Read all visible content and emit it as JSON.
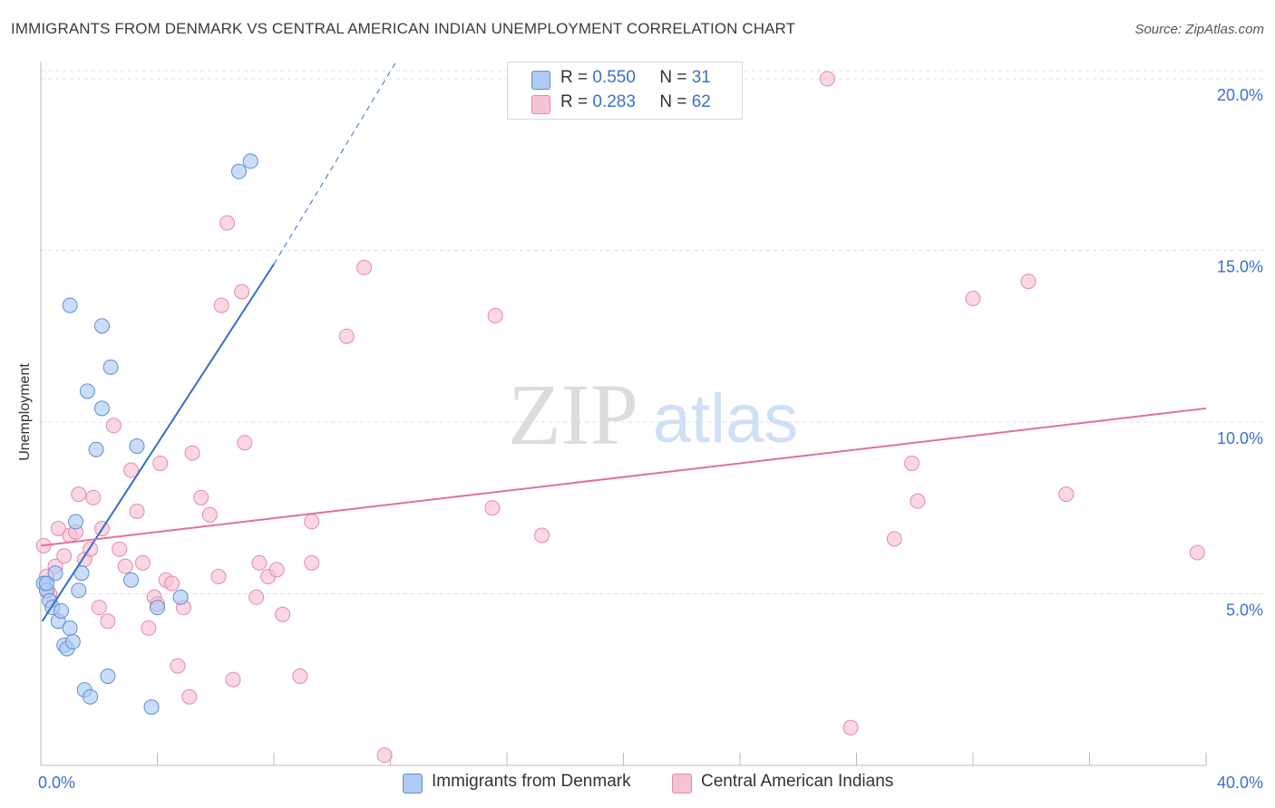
{
  "title": "IMMIGRANTS FROM DENMARK VS CENTRAL AMERICAN INDIAN UNEMPLOYMENT CORRELATION CHART",
  "source": "Source: ZipAtlas.com",
  "watermark": {
    "zip": "ZIP",
    "atlas": "atlas"
  },
  "legend_top": {
    "blue": {
      "r_label": "R =",
      "r_value": "0.550",
      "n_label": "N =",
      "n_value": "31"
    },
    "pink": {
      "r_label": "R =",
      "r_value": "0.283",
      "n_label": "N =",
      "n_value": "62"
    }
  },
  "colors": {
    "blue_fill": "#aecbf3",
    "blue_stroke": "#5b8ed8",
    "blue_line": "#2f6fcc",
    "pink_fill": "#f7c2d3",
    "pink_stroke": "#e38aa8",
    "pink_line": "#e0709a",
    "tick_label": "#3a6fd0",
    "grid": "#dddddd"
  },
  "chart_data": {
    "type": "scatter",
    "title": "IMMIGRANTS FROM DENMARK VS CENTRAL AMERICAN INDIAN UNEMPLOYMENT CORRELATION CHART",
    "xlabel": "",
    "ylabel": "Unemployment",
    "xlim": [
      0,
      40
    ],
    "ylim": [
      0,
      20.5
    ],
    "x_tick_labels": [
      "0.0%",
      "40.0%"
    ],
    "y_ticks": [
      5,
      10,
      15,
      20
    ],
    "y_tick_labels": [
      "5.0%",
      "10.0%",
      "15.0%",
      "20.0%"
    ],
    "grid": true,
    "legend_position": "top-center",
    "series": [
      {
        "name": "Immigrants from Denmark",
        "color": "#5b8ed8",
        "trend": {
          "x1": 0.05,
          "y1": 4.2,
          "x2": 8.0,
          "y2": 14.6,
          "dashed_to_x": 12.2,
          "dashed_to_y": 20.5
        },
        "points": [
          [
            0.1,
            5.3
          ],
          [
            0.2,
            5.1
          ],
          [
            0.3,
            4.8
          ],
          [
            0.4,
            4.6
          ],
          [
            0.5,
            5.6
          ],
          [
            0.6,
            4.2
          ],
          [
            0.7,
            4.5
          ],
          [
            0.8,
            3.5
          ],
          [
            0.9,
            3.4
          ],
          [
            1.0,
            4.0
          ],
          [
            1.1,
            3.6
          ],
          [
            1.2,
            7.1
          ],
          [
            1.3,
            5.1
          ],
          [
            1.4,
            5.6
          ],
          [
            1.5,
            2.2
          ],
          [
            1.7,
            2.0
          ],
          [
            1.9,
            9.2
          ],
          [
            2.1,
            10.4
          ],
          [
            2.3,
            2.6
          ],
          [
            2.4,
            11.6
          ],
          [
            3.1,
            5.4
          ],
          [
            3.3,
            9.3
          ],
          [
            3.8,
            1.7
          ],
          [
            4.0,
            4.6
          ],
          [
            4.8,
            4.9
          ],
          [
            6.8,
            17.3
          ],
          [
            7.2,
            17.6
          ],
          [
            1.0,
            13.4
          ],
          [
            2.1,
            12.8
          ],
          [
            1.6,
            10.9
          ],
          [
            0.2,
            5.3
          ]
        ]
      },
      {
        "name": "Central American Indians",
        "color": "#e38aa8",
        "trend": {
          "x1": 0.0,
          "y1": 6.4,
          "x2": 40.0,
          "y2": 10.4
        },
        "points": [
          [
            0.1,
            6.4
          ],
          [
            0.2,
            5.5
          ],
          [
            0.3,
            5.0
          ],
          [
            0.5,
            5.8
          ],
          [
            0.6,
            6.9
          ],
          [
            0.8,
            6.1
          ],
          [
            1.0,
            6.7
          ],
          [
            1.2,
            6.8
          ],
          [
            1.3,
            7.9
          ],
          [
            1.5,
            6.0
          ],
          [
            1.7,
            6.3
          ],
          [
            1.8,
            7.8
          ],
          [
            2.0,
            4.6
          ],
          [
            2.1,
            6.9
          ],
          [
            2.3,
            4.2
          ],
          [
            2.5,
            9.9
          ],
          [
            2.7,
            6.3
          ],
          [
            2.9,
            5.8
          ],
          [
            3.1,
            8.6
          ],
          [
            3.3,
            7.4
          ],
          [
            3.5,
            5.9
          ],
          [
            3.7,
            4.0
          ],
          [
            3.9,
            4.9
          ],
          [
            4.0,
            4.7
          ],
          [
            4.1,
            8.8
          ],
          [
            4.3,
            5.4
          ],
          [
            4.5,
            5.3
          ],
          [
            4.7,
            2.9
          ],
          [
            4.9,
            4.6
          ],
          [
            5.1,
            2.0
          ],
          [
            5.2,
            9.1
          ],
          [
            5.5,
            7.8
          ],
          [
            5.8,
            7.3
          ],
          [
            6.1,
            5.5
          ],
          [
            6.2,
            13.4
          ],
          [
            6.4,
            15.8
          ],
          [
            6.6,
            2.5
          ],
          [
            6.9,
            13.8
          ],
          [
            7.0,
            9.4
          ],
          [
            7.4,
            4.9
          ],
          [
            7.5,
            5.9
          ],
          [
            7.8,
            5.5
          ],
          [
            8.1,
            5.7
          ],
          [
            8.3,
            4.4
          ],
          [
            8.9,
            2.6
          ],
          [
            9.3,
            7.1
          ],
          [
            9.3,
            5.9
          ],
          [
            10.5,
            12.5
          ],
          [
            11.1,
            14.5
          ],
          [
            11.8,
            0.3
          ],
          [
            15.5,
            7.5
          ],
          [
            15.6,
            13.1
          ],
          [
            17.2,
            6.7
          ],
          [
            27.0,
            20.0
          ],
          [
            27.8,
            1.1
          ],
          [
            29.3,
            6.6
          ],
          [
            29.9,
            8.8
          ],
          [
            30.1,
            7.7
          ],
          [
            32.0,
            13.6
          ],
          [
            33.9,
            14.1
          ],
          [
            35.2,
            7.9
          ],
          [
            39.7,
            6.2
          ]
        ]
      }
    ]
  },
  "legend_bottom": {
    "blue_label": "Immigrants from Denmark",
    "pink_label": "Central American Indians"
  }
}
